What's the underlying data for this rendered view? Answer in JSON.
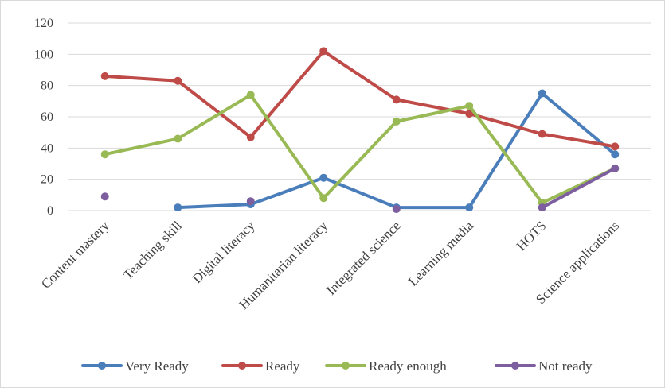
{
  "chart_data": {
    "type": "line",
    "title": "",
    "xlabel": "",
    "ylabel": "",
    "ylim": [
      0,
      120
    ],
    "yticks": [
      "0",
      "20",
      "40",
      "60",
      "80",
      "100",
      "120"
    ],
    "grid": true,
    "legend_position": "bottom",
    "categories": [
      "Content mastery",
      "Teaching skill",
      "Digital literacy",
      "Humanitarian literacy",
      "Integrated science",
      "Learning media",
      "HOTS",
      "Science applications"
    ],
    "series": [
      {
        "name": "Very Ready",
        "color": "#4a7ebb",
        "values": [
          null,
          2,
          4,
          21,
          2,
          2,
          75,
          36
        ]
      },
      {
        "name": "Ready",
        "color": "#be4b48",
        "values": [
          86,
          83,
          47,
          102,
          71,
          62,
          49,
          41
        ]
      },
      {
        "name": "Ready enough",
        "color": "#98b954",
        "values": [
          36,
          46,
          74,
          8,
          57,
          67,
          5,
          27
        ]
      },
      {
        "name": "Not ready",
        "color": "#7d5fa0",
        "values": [
          9,
          null,
          6,
          null,
          1,
          null,
          2,
          27
        ]
      }
    ]
  }
}
